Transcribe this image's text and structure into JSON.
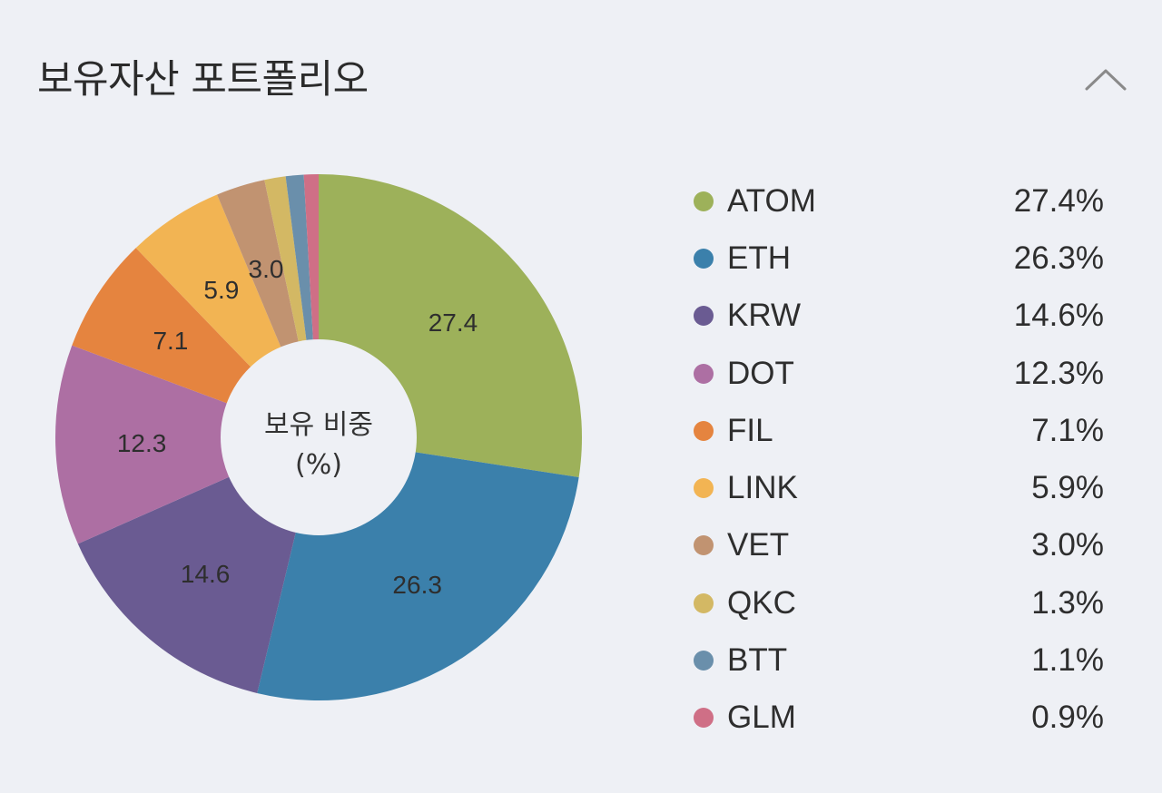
{
  "header": {
    "title": "보유자산 포트폴리오",
    "collapse_icon": "chevron-up-icon"
  },
  "donut": {
    "center_line1": "보유 비중",
    "center_line2": "(%)"
  },
  "legend": [
    {
      "name": "ATOM",
      "value": "27.4%",
      "color": "#9db15a"
    },
    {
      "name": "ETH",
      "value": "26.3%",
      "color": "#3b80ab"
    },
    {
      "name": "KRW",
      "value": "14.6%",
      "color": "#6a5b92"
    },
    {
      "name": "DOT",
      "value": "12.3%",
      "color": "#ad6fa3"
    },
    {
      "name": "FIL",
      "value": "7.1%",
      "color": "#e5843f"
    },
    {
      "name": "LINK",
      "value": "5.9%",
      "color": "#f2b453"
    },
    {
      "name": "VET",
      "value": "3.0%",
      "color": "#c19371"
    },
    {
      "name": "QKC",
      "value": "1.3%",
      "color": "#d3b864"
    },
    {
      "name": "BTT",
      "value": "1.1%",
      "color": "#6a8fab"
    },
    {
      "name": "GLM",
      "value": "0.9%",
      "color": "#cf6f86"
    }
  ],
  "chart_data": {
    "type": "pie",
    "title": "보유자산 포트폴리오",
    "subtitle": "보유 비중 (%)",
    "donut": true,
    "start_angle": "12 o'clock, clockwise",
    "categories": [
      "ATOM",
      "ETH",
      "KRW",
      "DOT",
      "FIL",
      "LINK",
      "VET",
      "QKC",
      "BTT",
      "GLM"
    ],
    "values": [
      27.4,
      26.3,
      14.6,
      12.3,
      7.1,
      5.9,
      3.0,
      1.3,
      1.1,
      0.9
    ],
    "colors": [
      "#9db15a",
      "#3b80ab",
      "#6a5b92",
      "#ad6fa3",
      "#e5843f",
      "#f2b453",
      "#c19371",
      "#d3b864",
      "#6a8fab",
      "#cf6f86"
    ],
    "slice_labels_shown": [
      "27.4",
      "26.3",
      "14.6",
      "12.3",
      "7.1",
      "5.9",
      "3.0"
    ],
    "legend_position": "right",
    "units": "%"
  }
}
